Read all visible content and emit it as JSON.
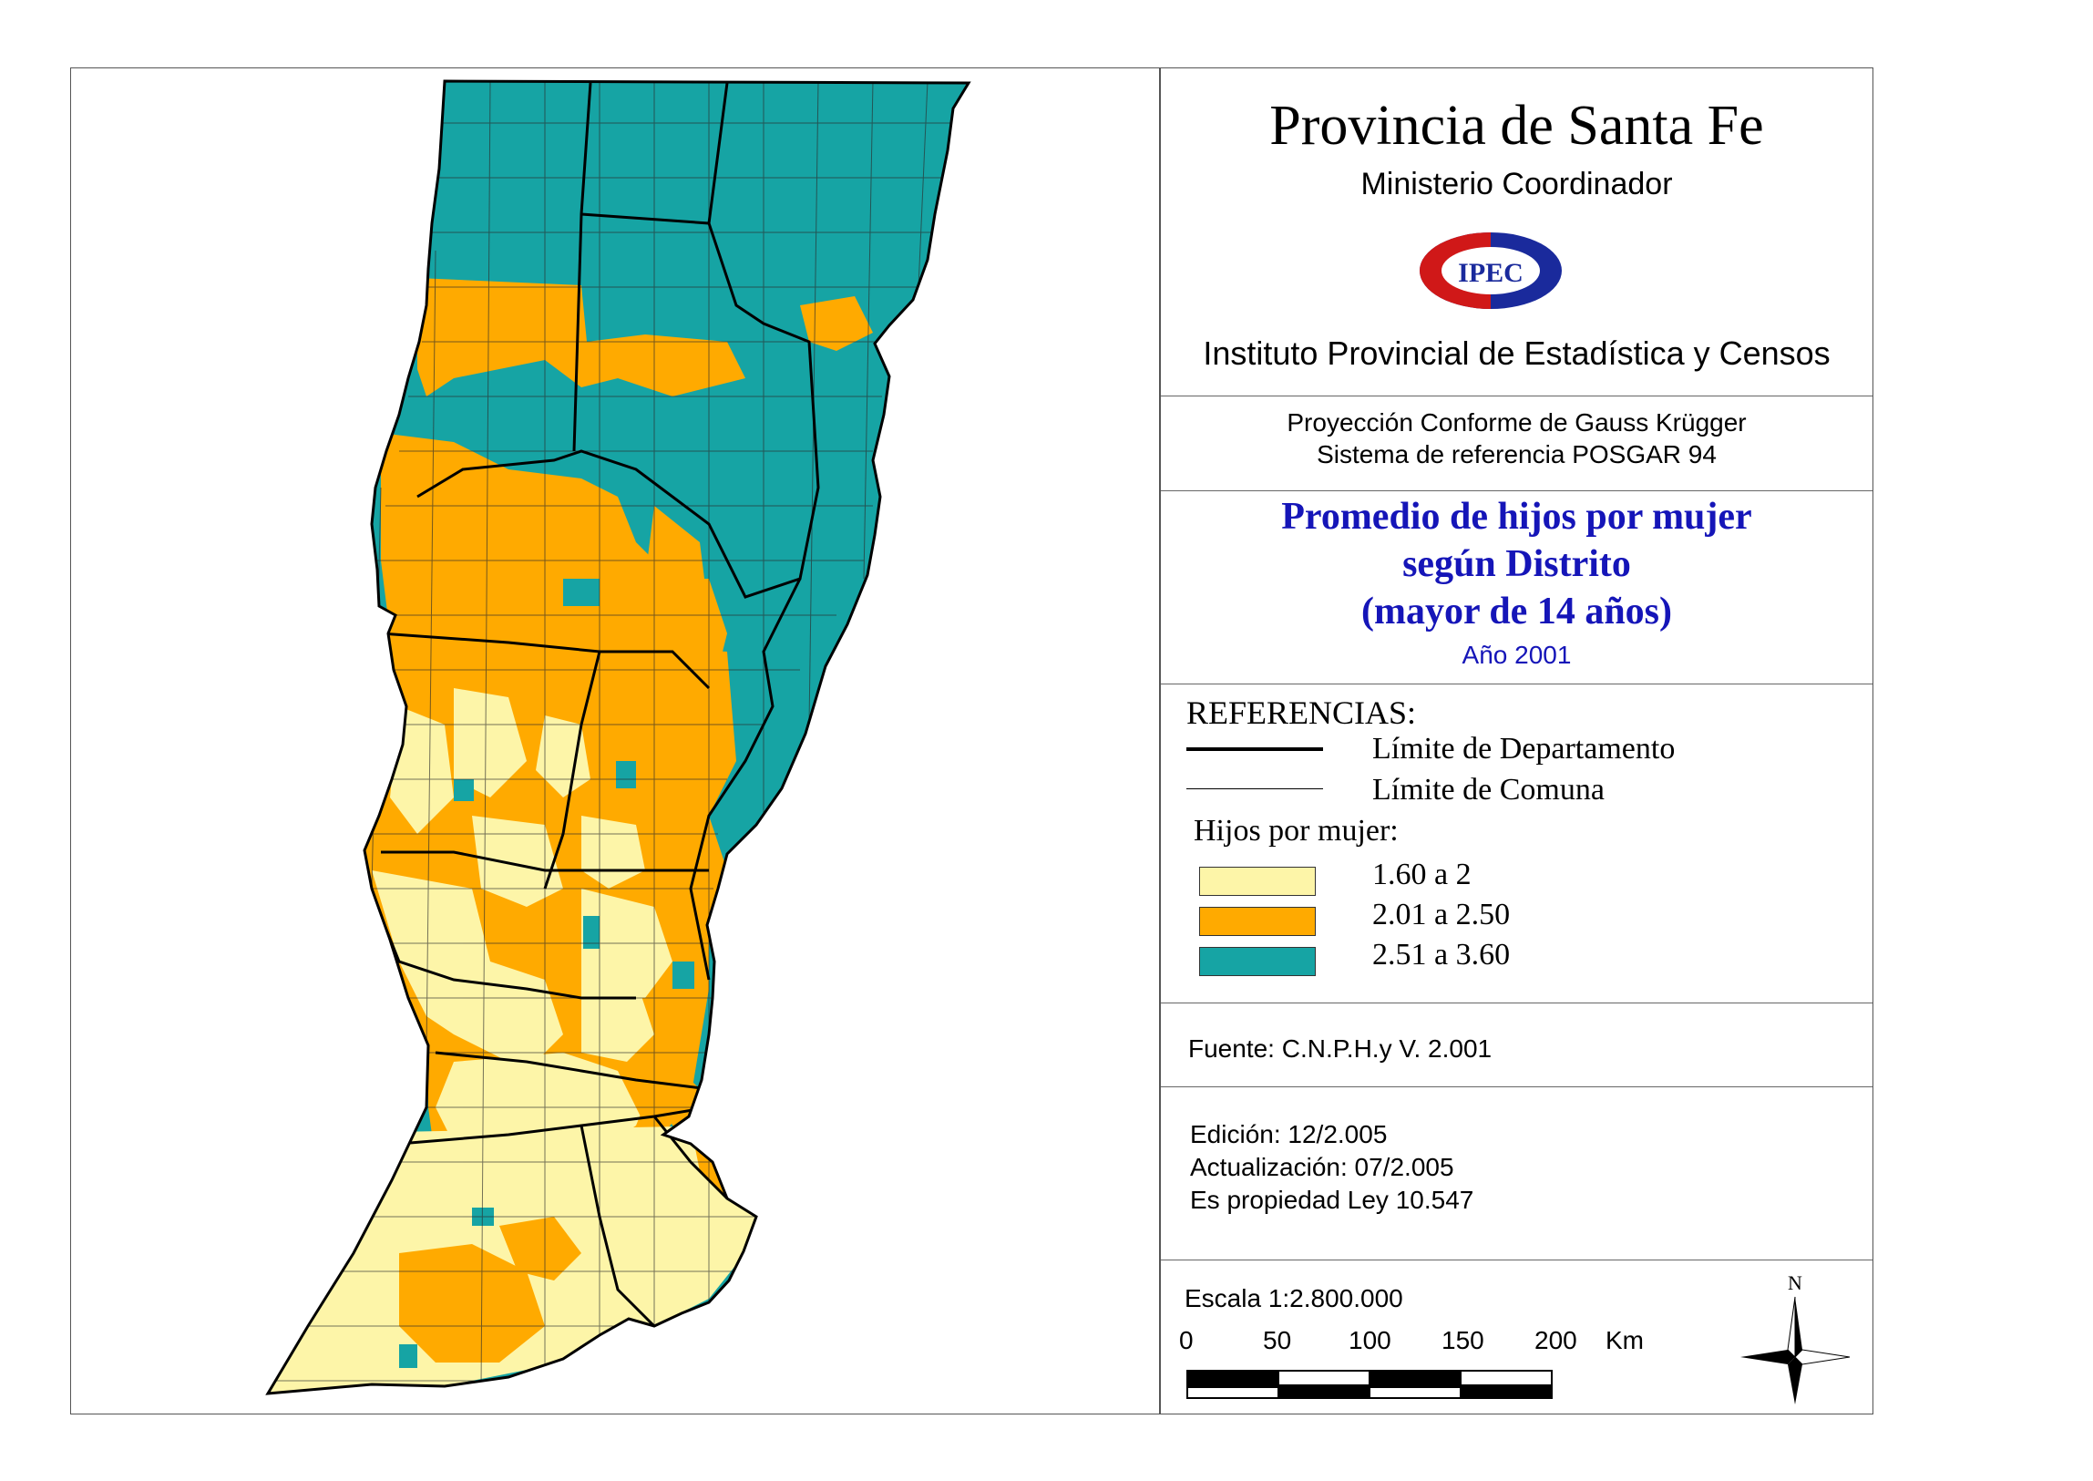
{
  "title": "Provincia de Santa Fe",
  "subtitle": "Ministerio Coordinador",
  "logo_text": "IPEC",
  "institute": "Instituto Provincial de Estadística y Censos",
  "projection": {
    "line1": "Proyección Conforme de Gauss Krügger",
    "line2": "Sistema de referencia POSGAR 94"
  },
  "map_title": {
    "line1": "Promedio de hijos por mujer",
    "line2": "según Distrito",
    "line3": "(mayor de 14 años)",
    "year": "Año 2001"
  },
  "references": {
    "heading": "REFERENCIAS:",
    "dept_limit": "Límite de Departamento",
    "commune_limit": "Límite de Comuna",
    "legend_heading": "Hijos por mujer:",
    "classes": [
      {
        "label": "1.60 a 2",
        "color": "#fdf5a8"
      },
      {
        "label": "2.01 a 2.50",
        "color": "#ffaa00"
      },
      {
        "label": "2.51 a 3.60",
        "color": "#16a4a4"
      }
    ]
  },
  "source": "Fuente:  C.N.P.H.y V. 2.001",
  "edition": {
    "edicion": "Edición:  12/2.005",
    "actualizacion": "Actualización:  07/2.005",
    "propiedad": "Es propiedad Ley 10.547"
  },
  "scale": {
    "label": "Escala 1:2.800.000",
    "ticks": [
      "0",
      "50",
      "100",
      "150",
      "200"
    ],
    "unit": "Km"
  },
  "north_label": "N"
}
